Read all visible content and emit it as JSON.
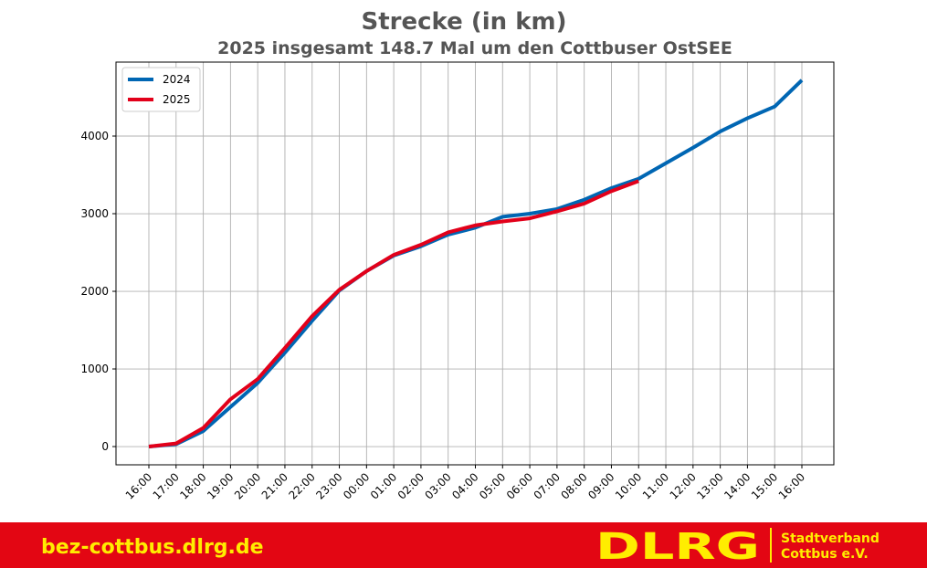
{
  "chart_data": {
    "type": "line",
    "title": "Strecke (in km)",
    "subtitle": "2025 insgesamt 148.7 Mal um den Cottbuser OstSEE",
    "categories": [
      "16:00",
      "17:00",
      "18:00",
      "19:00",
      "20:00",
      "21:00",
      "22:00",
      "23:00",
      "00:00",
      "01:00",
      "02:00",
      "03:00",
      "04:00",
      "05:00",
      "06:00",
      "07:00",
      "08:00",
      "09:00",
      "10:00",
      "11:00",
      "12:00",
      "13:00",
      "14:00",
      "15:00",
      "16:00"
    ],
    "series": [
      {
        "name": "2024",
        "color": "#0066b3",
        "values": [
          0,
          30,
          200,
          510,
          820,
          1210,
          1620,
          2010,
          2260,
          2460,
          2580,
          2730,
          2820,
          2960,
          3000,
          3060,
          3180,
          3330,
          3450,
          3650,
          3850,
          4060,
          4230,
          4380,
          4720
        ]
      },
      {
        "name": "2025",
        "color": "#e2001a",
        "values": [
          0,
          40,
          240,
          610,
          870,
          1270,
          1680,
          2020,
          2260,
          2470,
          2600,
          2760,
          2850,
          2900,
          2940,
          3030,
          3130,
          3290,
          3420,
          null,
          null,
          null,
          null,
          null,
          null
        ]
      }
    ],
    "ylim": [
      -235,
      4953
    ],
    "yticks": [
      0,
      1000,
      2000,
      3000,
      4000
    ],
    "grid": true,
    "legend": "upper left"
  },
  "footer": {
    "url": "bez-cottbus.dlrg.de",
    "logo": "DLRG",
    "org_line1": "Stadtverband",
    "org_line2": "Cottbus e.V."
  }
}
